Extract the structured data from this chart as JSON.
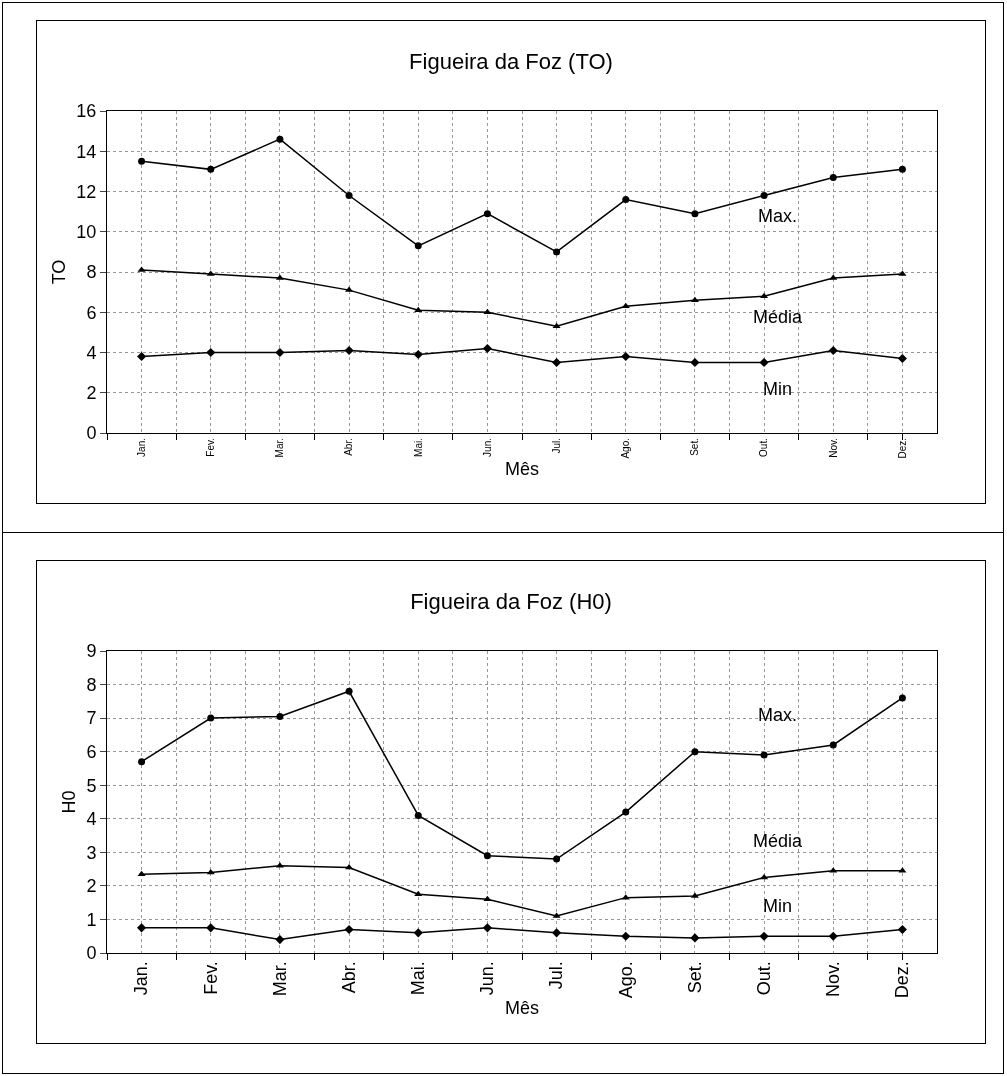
{
  "chart_data": [
    {
      "type": "line",
      "title": "Figueira da Foz (TO)",
      "xlabel": "Mês",
      "ylabel": "TO",
      "categories": [
        "Jan.",
        "Fev.",
        "Mar.",
        "Abr.",
        "Mai.",
        "Jun.",
        "Jul.",
        "Ago.",
        "Set.",
        "Out.",
        "Nov.",
        "Dez."
      ],
      "series": [
        {
          "name": "Max.",
          "color": "#000000",
          "marker": "circle",
          "values": [
            13.5,
            13.1,
            14.6,
            11.8,
            9.3,
            10.9,
            9.0,
            11.6,
            10.9,
            11.8,
            12.7,
            13.1
          ]
        },
        {
          "name": "Média",
          "color": "#000000",
          "marker": "triangle",
          "values": [
            8.1,
            7.9,
            7.7,
            7.1,
            6.1,
            6.0,
            5.3,
            6.3,
            6.6,
            6.8,
            7.7,
            7.9
          ]
        },
        {
          "name": "Min",
          "color": "#000000",
          "marker": "diamond",
          "values": [
            3.8,
            4.0,
            4.0,
            4.1,
            3.9,
            4.2,
            3.5,
            3.8,
            3.5,
            3.5,
            4.1,
            3.7
          ]
        }
      ],
      "ylim": [
        0,
        16
      ],
      "yticks": [
        0,
        2,
        4,
        6,
        8,
        10,
        12,
        14,
        16
      ],
      "grid": true,
      "legend": false,
      "line_style": "solid"
    },
    {
      "type": "line",
      "title": "Figueira da Foz (H0)",
      "xlabel": "Mês",
      "ylabel": "H0",
      "categories": [
        "Jan.",
        "Fev.",
        "Mar.",
        "Abr.",
        "Mai.",
        "Jun.",
        "Jul.",
        "Ago.",
        "Set.",
        "Out.",
        "Nov.",
        "Dez."
      ],
      "series": [
        {
          "name": "Max.",
          "color": "#000000",
          "marker": "circle",
          "values": [
            5.7,
            7.0,
            7.05,
            7.8,
            4.1,
            2.9,
            2.8,
            4.2,
            6.0,
            5.9,
            6.2,
            7.6
          ]
        },
        {
          "name": "Média",
          "color": "#000000",
          "marker": "triangle",
          "values": [
            2.35,
            2.4,
            2.6,
            2.55,
            1.75,
            1.6,
            1.1,
            1.65,
            1.7,
            2.25,
            2.45,
            2.45
          ]
        },
        {
          "name": "Min",
          "color": "#000000",
          "marker": "diamond",
          "values": [
            0.75,
            0.75,
            0.4,
            0.7,
            0.6,
            0.75,
            0.6,
            0.5,
            0.45,
            0.5,
            0.5,
            0.7
          ]
        }
      ],
      "ylim": [
        0,
        9
      ],
      "yticks": [
        0,
        1,
        2,
        3,
        4,
        5,
        6,
        7,
        8,
        9
      ],
      "grid": true,
      "legend": false,
      "line_style": "solid"
    }
  ]
}
